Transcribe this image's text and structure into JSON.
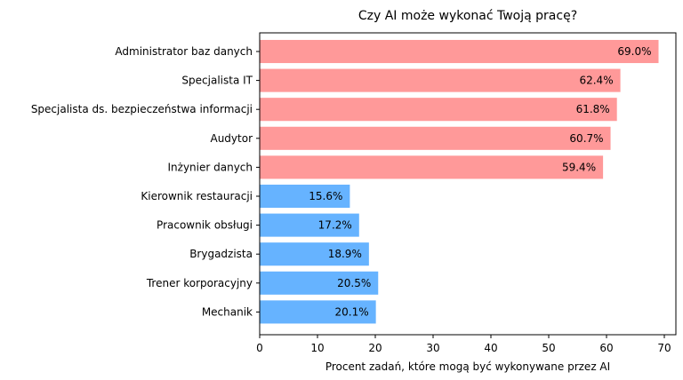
{
  "chart_data": {
    "type": "bar",
    "orientation": "horizontal",
    "title": "Czy AI może wykonać Twoją pracę?",
    "xlabel": "Procent zadań, które mogą być wykonywane przez AI",
    "ylabel": "",
    "xlim": [
      0,
      72
    ],
    "xticks": [
      0,
      10,
      20,
      30,
      40,
      50,
      60,
      70
    ],
    "grid": false,
    "categories": [
      "Administrator baz danych",
      "Specjalista IT",
      "Specjalista ds. bezpieczeństwa informacji",
      "Audytor",
      "Inżynier danych",
      "Kierownik restauracji",
      "Pracownik obsługi",
      "Brygadzista",
      "Trener korporacyjny",
      "Mechanik"
    ],
    "values": [
      69.0,
      62.4,
      61.8,
      60.7,
      59.4,
      15.6,
      17.2,
      18.9,
      20.5,
      20.1
    ],
    "data_labels": [
      "69.0%",
      "62.4%",
      "61.8%",
      "60.7%",
      "59.4%",
      "15.6%",
      "17.2%",
      "18.9%",
      "20.5%",
      "20.1%"
    ],
    "colors": [
      "#ff9999",
      "#ff9999",
      "#ff9999",
      "#ff9999",
      "#ff9999",
      "#66b3ff",
      "#66b3ff",
      "#66b3ff",
      "#66b3ff",
      "#66b3ff"
    ]
  }
}
